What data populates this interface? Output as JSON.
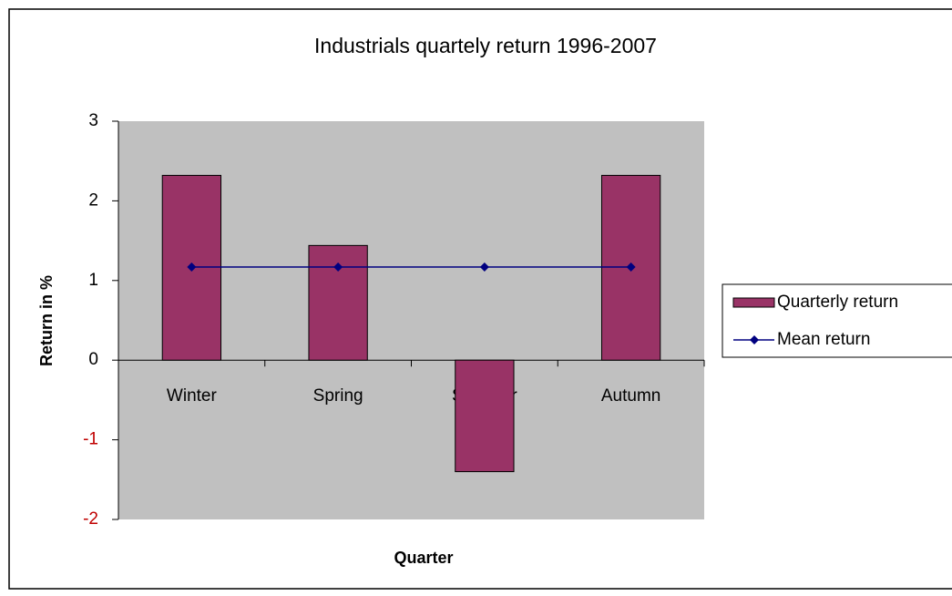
{
  "chart_data": {
    "type": "bar",
    "title": "Industrials quartely return 1996-2007",
    "x_label": "Quarter",
    "y_label": "Return in %",
    "categories": [
      "Winter",
      "Spring",
      "Summer",
      "Autumn"
    ],
    "series": [
      {
        "name": "Quarterly return",
        "type": "bar",
        "color": "#993366",
        "values": [
          2.32,
          1.44,
          -1.4,
          2.32
        ]
      },
      {
        "name": "Mean return",
        "type": "line",
        "color": "#000080",
        "values": [
          1.17,
          1.17,
          1.17,
          1.17
        ]
      }
    ],
    "ylim": [
      -2,
      3
    ],
    "yticks": [
      -2,
      -1,
      0,
      1,
      2,
      3
    ],
    "negative_tick_color": "#c00000",
    "plot_background": "#c0c0c0",
    "legend": "right"
  }
}
